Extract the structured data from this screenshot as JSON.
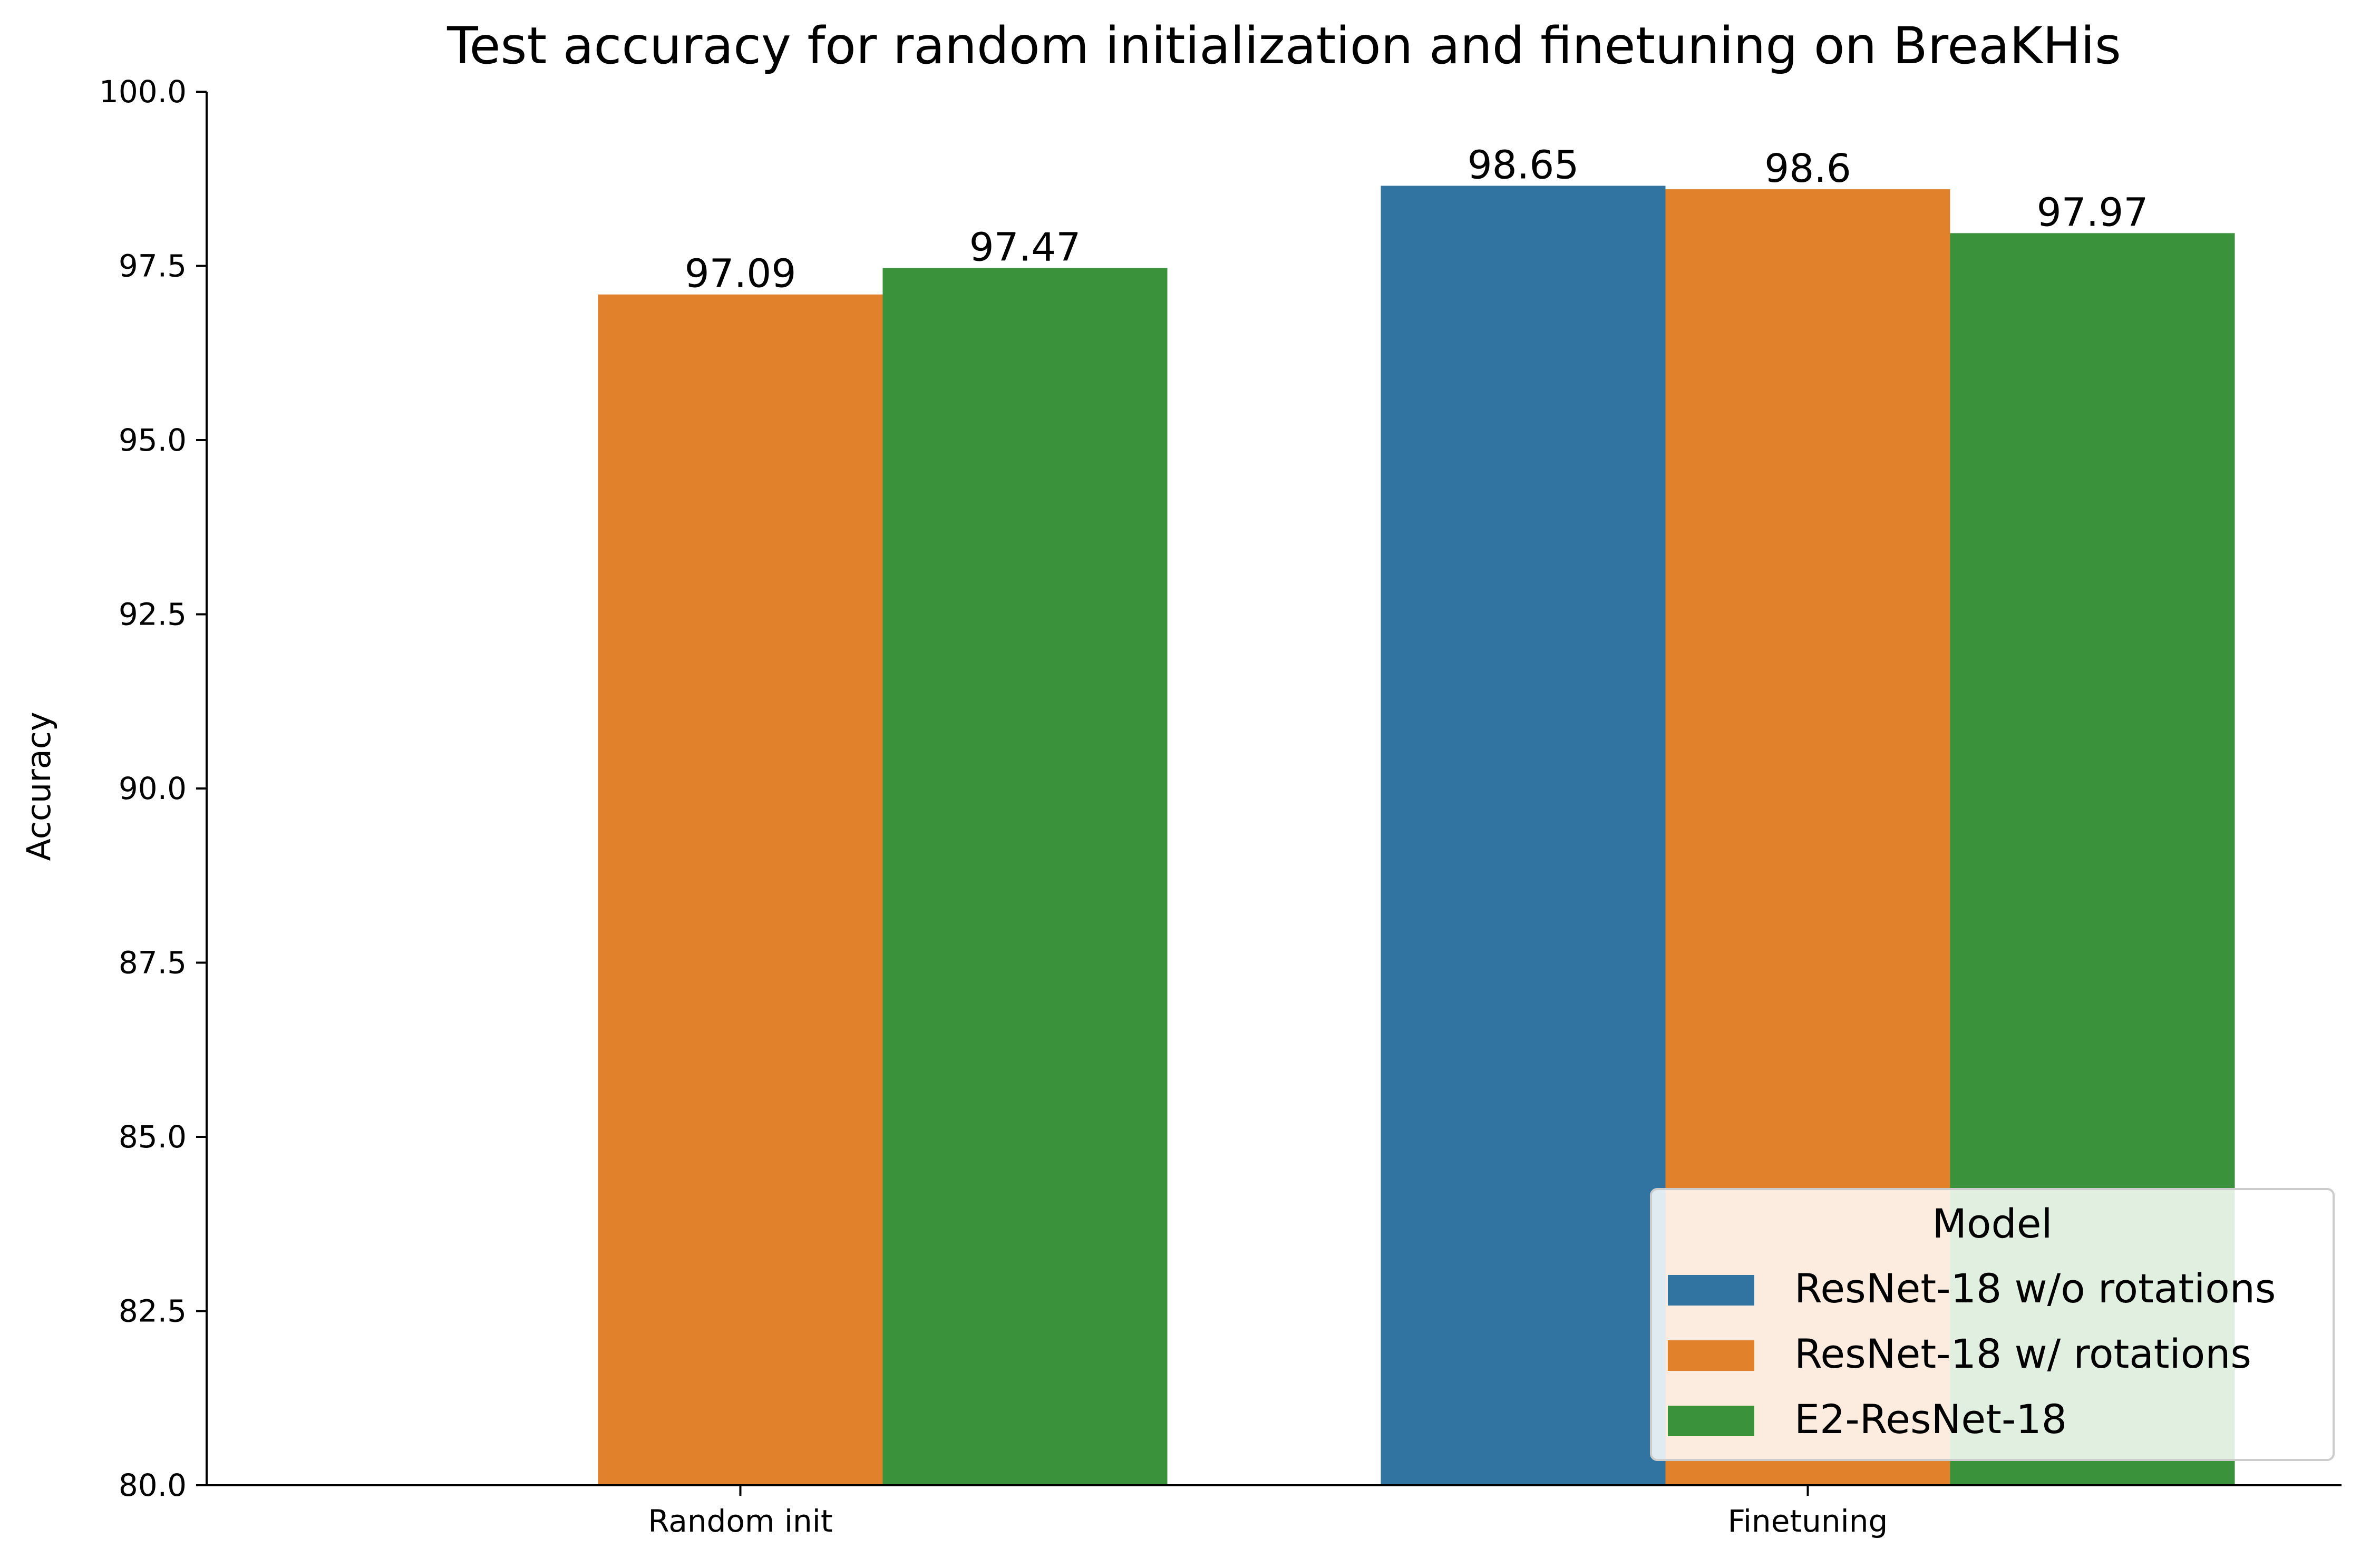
{
  "chart_data": {
    "type": "bar",
    "title": "Test accuracy for random initialization and finetuning on BreaKHis",
    "xlabel": "",
    "ylabel": "Accuracy",
    "ylim": [
      80.0,
      100.0
    ],
    "yticks": [
      "80.0",
      "82.5",
      "85.0",
      "87.5",
      "90.0",
      "92.5",
      "95.0",
      "97.5",
      "100.0"
    ],
    "categories": [
      "Random init",
      "Finetuning"
    ],
    "series": [
      {
        "name": "ResNet-18 w/o rotations",
        "color": "#3274a1",
        "values": [
          null,
          98.65
        ],
        "labels": [
          "",
          "98.65"
        ]
      },
      {
        "name": "ResNet-18 w/ rotations",
        "color": "#e1812c",
        "values": [
          97.09,
          98.6
        ],
        "labels": [
          "97.09",
          "98.6"
        ]
      },
      {
        "name": "E2-ResNet-18",
        "color": "#3a923a",
        "values": [
          97.47,
          97.97
        ],
        "labels": [
          "97.47",
          "97.97"
        ]
      }
    ],
    "legend": {
      "title": "Model",
      "placement": "lower-right"
    },
    "grid": false
  }
}
